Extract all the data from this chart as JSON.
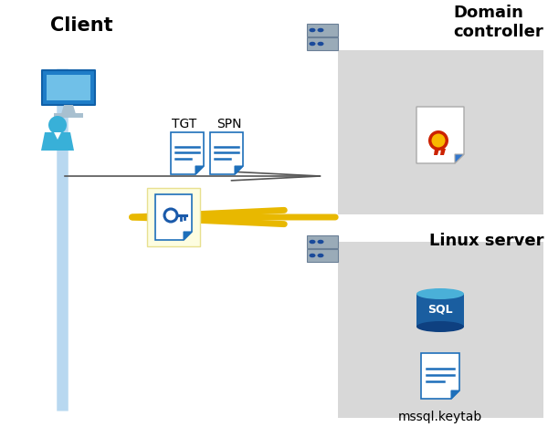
{
  "bg_color": "#ffffff",
  "client_label": "Client",
  "dc_label": "Domain\ncontroller",
  "linux_label": "Linux server",
  "tgt_label": "TGT",
  "spn_label": "SPN",
  "keytab_label": "mssql.keytab",
  "client_line_color": "#b8d8f0",
  "arrow1_color": "#555555",
  "arrow2_color": "#e8b800",
  "key_bg_color": "#fdfde0",
  "dc_box_color": "#d8d8d8",
  "linux_box_color": "#d8d8d8",
  "doc_color": "#1e6fba",
  "server_dark": "#6a7f96",
  "server_light": "#9aabb8",
  "server_dot": "#1a4a9a",
  "sql_top": "#4ab0d8",
  "sql_body": "#1a5ea0",
  "sql_bottom": "#0e4080",
  "cert_outer": "#cc2200",
  "cert_inner": "#f8b800",
  "key_color": "#1a5aaa"
}
